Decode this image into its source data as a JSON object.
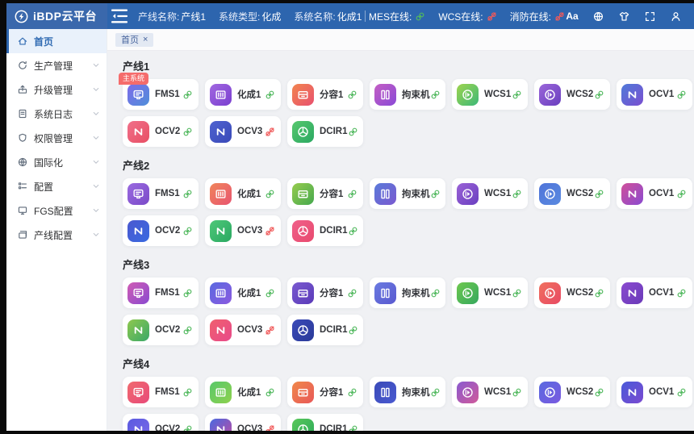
{
  "header": {
    "logo_text": "iBDP云平台",
    "info": [
      {
        "label": "产线名称:",
        "value": "产线1"
      },
      {
        "label": "系统类型:",
        "value": "化成"
      },
      {
        "label": "系统名称:",
        "value": "化成1"
      }
    ],
    "statuses": [
      {
        "label": "MES在线:",
        "online": true
      },
      {
        "label": "WCS在线:",
        "online": false
      },
      {
        "label": "消防在线:",
        "online": false
      }
    ],
    "right_tools": [
      {
        "name": "font-size",
        "glyph": "Aa"
      },
      {
        "name": "language-globe"
      },
      {
        "name": "theme-shirt"
      },
      {
        "name": "fullscreen"
      },
      {
        "name": "user"
      }
    ],
    "colors": {
      "header_bg": "#2d65ae",
      "logo_bg": "#3a68ac"
    }
  },
  "sidebar": {
    "items": [
      {
        "label": "首页",
        "icon": "home",
        "active": true,
        "expandable": false
      },
      {
        "label": "生产管理",
        "icon": "production",
        "active": false,
        "expandable": true
      },
      {
        "label": "升级管理",
        "icon": "upgrade",
        "active": false,
        "expandable": true
      },
      {
        "label": "系统日志",
        "icon": "log",
        "active": false,
        "expandable": true
      },
      {
        "label": "权限管理",
        "icon": "permission",
        "active": false,
        "expandable": true
      },
      {
        "label": "国际化",
        "icon": "globe",
        "active": false,
        "expandable": true
      },
      {
        "label": "配置",
        "icon": "config",
        "active": false,
        "expandable": true
      },
      {
        "label": "FGS配置",
        "icon": "fgs",
        "active": false,
        "expandable": true
      },
      {
        "label": "产线配置",
        "icon": "line-config",
        "active": false,
        "expandable": true
      }
    ]
  },
  "tabs": [
    {
      "label": "首页",
      "close_glyph": "×",
      "active": true
    }
  ],
  "status_colors": {
    "online": "#52b95f",
    "offline": "#f05a5a",
    "badge": "#f56c6c"
  },
  "sections": [
    {
      "title": "产线1",
      "cards": [
        {
          "label": "FMS1",
          "icon": "fms",
          "badge": "主系统",
          "online": true,
          "colors": [
            "#7d6bea",
            "#4f8fd9"
          ]
        },
        {
          "label": "化成1",
          "icon": "formation",
          "online": true,
          "colors": [
            "#a168e0",
            "#7a3fd0"
          ]
        },
        {
          "label": "分容1",
          "icon": "capacity",
          "online": true,
          "colors": [
            "#f2854f",
            "#e8506e"
          ]
        },
        {
          "label": "拘束机",
          "icon": "restraint",
          "online": true,
          "colors": [
            "#c45ec4",
            "#8a4ad6"
          ]
        },
        {
          "label": "WCS1",
          "icon": "wcs",
          "online": true,
          "colors": [
            "#9ed44e",
            "#3cb878"
          ]
        },
        {
          "label": "WCS2",
          "icon": "wcs",
          "online": true,
          "colors": [
            "#9a66d9",
            "#6a3fbf"
          ]
        },
        {
          "label": "OCV1",
          "icon": "ocv",
          "online": true,
          "colors": [
            "#4f7ad9",
            "#7a4fd0"
          ]
        },
        {
          "label": "OCV2",
          "icon": "ocv",
          "online": true,
          "colors": [
            "#f0708a",
            "#e84f64"
          ]
        },
        {
          "label": "OCV3",
          "icon": "ocv",
          "online": false,
          "colors": [
            "#4f62d0",
            "#3a4ab8"
          ]
        },
        {
          "label": "DCIR1",
          "icon": "dcir",
          "online": true,
          "colors": [
            "#58c86e",
            "#2aa862"
          ]
        }
      ]
    },
    {
      "title": "产线2",
      "cards": [
        {
          "label": "FMS1",
          "icon": "fms",
          "online": true,
          "colors": [
            "#9a6ae0",
            "#7a4ac8"
          ]
        },
        {
          "label": "化成1",
          "icon": "formation",
          "online": true,
          "colors": [
            "#f0855a",
            "#e85570"
          ]
        },
        {
          "label": "分容1",
          "icon": "capacity",
          "online": true,
          "colors": [
            "#97cc4e",
            "#45a84e"
          ]
        },
        {
          "label": "拘束机",
          "icon": "restraint",
          "online": true,
          "colors": [
            "#5a7ad9",
            "#7a5ad0"
          ]
        },
        {
          "label": "WCS1",
          "icon": "wcs",
          "online": true,
          "colors": [
            "#9a62d6",
            "#6a3fc0"
          ]
        },
        {
          "label": "WCS2",
          "icon": "wcs",
          "online": true,
          "colors": [
            "#4f74d9",
            "#5a8ae0"
          ]
        },
        {
          "label": "OCV1",
          "icon": "ocv",
          "online": true,
          "colors": [
            "#d0509a",
            "#8a4ad0"
          ]
        },
        {
          "label": "OCV2",
          "icon": "ocv",
          "online": true,
          "colors": [
            "#4a58d0",
            "#3a6ae0"
          ]
        },
        {
          "label": "OCV3",
          "icon": "ocv",
          "online": false,
          "colors": [
            "#4ec878",
            "#2aa862"
          ]
        },
        {
          "label": "DCIR1",
          "icon": "dcir",
          "online": true,
          "colors": [
            "#f0608a",
            "#e84a6e"
          ]
        }
      ]
    },
    {
      "title": "产线3",
      "cards": [
        {
          "label": "FMS1",
          "icon": "fms",
          "online": true,
          "colors": [
            "#d05cb4",
            "#8a4ad0"
          ]
        },
        {
          "label": "化成1",
          "icon": "formation",
          "online": true,
          "colors": [
            "#5a6ae0",
            "#8a5ae0"
          ]
        },
        {
          "label": "分容1",
          "icon": "capacity",
          "online": true,
          "colors": [
            "#7a5ad0",
            "#5a3ab8"
          ]
        },
        {
          "label": "拘束机",
          "icon": "restraint",
          "online": true,
          "colors": [
            "#6a7ae0",
            "#5a5ad0"
          ]
        },
        {
          "label": "WCS1",
          "icon": "wcs",
          "online": true,
          "colors": [
            "#6ec84e",
            "#35a85e"
          ]
        },
        {
          "label": "WCS2",
          "icon": "wcs",
          "online": true,
          "colors": [
            "#f0705e",
            "#e84a64"
          ]
        },
        {
          "label": "OCV1",
          "icon": "ocv",
          "online": true,
          "colors": [
            "#8a4ad0",
            "#6a3ab8"
          ]
        },
        {
          "label": "OCV2",
          "icon": "ocv",
          "online": true,
          "colors": [
            "#8ec84e",
            "#3aa868"
          ]
        },
        {
          "label": "OCV3",
          "icon": "ocv",
          "online": false,
          "colors": [
            "#f0606e",
            "#e84a8a"
          ]
        },
        {
          "label": "DCIR1",
          "icon": "dcir",
          "online": true,
          "colors": [
            "#3a4ab8",
            "#2a3a98"
          ]
        }
      ]
    },
    {
      "title": "产线4",
      "cards": [
        {
          "label": "FMS1",
          "icon": "fms",
          "online": true,
          "colors": [
            "#f06a6e",
            "#e84a7a"
          ]
        },
        {
          "label": "化成1",
          "icon": "formation",
          "online": true,
          "colors": [
            "#58c86a",
            "#8ed14e"
          ]
        },
        {
          "label": "分容1",
          "icon": "capacity",
          "online": true,
          "colors": [
            "#f0884a",
            "#e85858"
          ]
        },
        {
          "label": "拘束机",
          "icon": "restraint",
          "online": true,
          "colors": [
            "#3a4ab8",
            "#4a5ad0"
          ]
        },
        {
          "label": "WCS1",
          "icon": "wcs",
          "online": true,
          "colors": [
            "#8a5ad0",
            "#d05a9a"
          ]
        },
        {
          "label": "WCS2",
          "icon": "wcs",
          "online": true,
          "colors": [
            "#5a6ae0",
            "#7a5ae0"
          ]
        },
        {
          "label": "OCV1",
          "icon": "ocv",
          "online": true,
          "colors": [
            "#4a5ad9",
            "#7a4ad0"
          ]
        },
        {
          "label": "OCV2",
          "icon": "ocv",
          "online": true,
          "colors": [
            "#5a5ae0",
            "#7a6ae8"
          ]
        },
        {
          "label": "OCV3",
          "icon": "ocv",
          "online": false,
          "colors": [
            "#4a6ae0",
            "#c04aa0"
          ]
        },
        {
          "label": "DCIR1",
          "icon": "dcir",
          "online": true,
          "colors": [
            "#5ac85a",
            "#2aa85a"
          ]
        }
      ]
    }
  ]
}
